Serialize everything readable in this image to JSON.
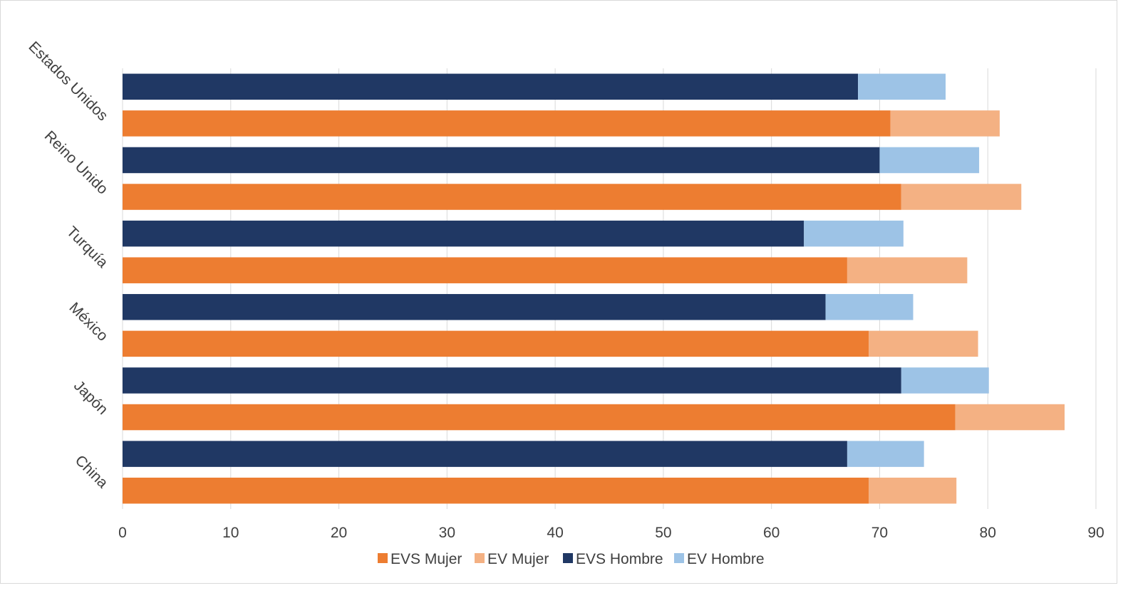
{
  "chart_data": {
    "type": "bar",
    "orientation": "horizontal",
    "stacked": true,
    "categories": [
      "China",
      "Japón",
      "México",
      "Turquía",
      "Reino Unido",
      "Estados Unidos"
    ],
    "xlim": [
      0,
      90
    ],
    "xticks": [
      0,
      10,
      20,
      30,
      40,
      50,
      60,
      70,
      80,
      90
    ],
    "grid": true,
    "legend_position": "bottom",
    "title": "",
    "xlabel": "",
    "ylabel": "",
    "groups": [
      {
        "name": "Mujer",
        "series": [
          {
            "name": "EVS Mujer",
            "color": "#ED7D31",
            "values": [
              69,
              77,
              69,
              67,
              72,
              71
            ]
          },
          {
            "name": "EV Mujer",
            "color": "#F4B183",
            "values": [
              8.1,
              10.1,
              10.1,
              11.1,
              11.1,
              10.1
            ]
          }
        ]
      },
      {
        "name": "Hombre",
        "series": [
          {
            "name": "EVS Hombre",
            "color": "#203864",
            "values": [
              67,
              72,
              65,
              63,
              70,
              68
            ]
          },
          {
            "name": "EV Hombre",
            "color": "#9DC3E6",
            "values": [
              7.1,
              8.1,
              8.1,
              9.2,
              9.2,
              8.1
            ]
          }
        ]
      }
    ],
    "legend": [
      "EVS Mujer",
      "EV Mujer",
      "EVS Hombre",
      "EV Hombre"
    ]
  }
}
